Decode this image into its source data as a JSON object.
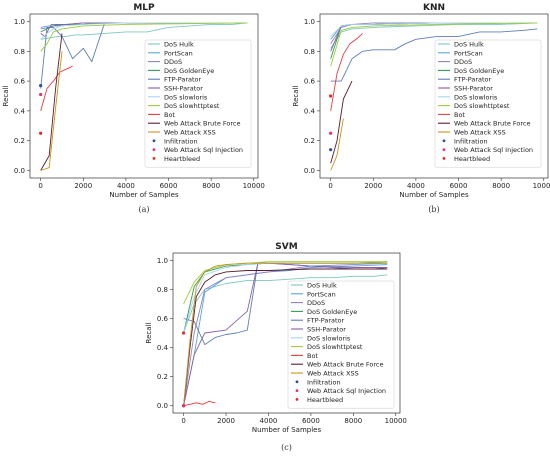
{
  "legend_entries": [
    {
      "name": "DoS Hulk",
      "color": "#7fc8c0",
      "kind": "line"
    },
    {
      "name": "PortScan",
      "color": "#5aa6d6",
      "kind": "line"
    },
    {
      "name": "DDoS",
      "color": "#8b86c4",
      "kind": "line"
    },
    {
      "name": "DoS GoldenEye",
      "color": "#2e9e56",
      "kind": "line"
    },
    {
      "name": "FTP-Parator",
      "color": "#5e7fb8",
      "kind": "line"
    },
    {
      "name": "SSH-Parator",
      "color": "#8a5ea8",
      "kind": "line"
    },
    {
      "name": "DoS slowloris",
      "color": "#a8d6f0",
      "kind": "line"
    },
    {
      "name": "DoS slowhttptest",
      "color": "#9ccc3a",
      "kind": "line"
    },
    {
      "name": "Bot",
      "color": "#e83c3c",
      "kind": "line"
    },
    {
      "name": "Web Attack Brute Force",
      "color": "#5c1a2e",
      "kind": "line"
    },
    {
      "name": "Web Attack XSS",
      "color": "#c89418",
      "kind": "line"
    },
    {
      "name": "Infiltration",
      "color": "#2a4fa8",
      "kind": "point"
    },
    {
      "name": "Web Attack Sql Injection",
      "color": "#e8306a",
      "kind": "point"
    },
    {
      "name": "Heartbleed",
      "color": "#e82828",
      "kind": "point"
    }
  ],
  "chart_data": [
    {
      "type": "line",
      "title": "MLP",
      "caption": "(a)",
      "xlabel": "Number of Samples",
      "ylabel": "Recall",
      "xlim": [
        -500,
        10200
      ],
      "ylim": [
        -0.05,
        1.05
      ],
      "xticks": [
        0,
        2000,
        4000,
        6000,
        8000,
        10000
      ],
      "yticks": [
        0.0,
        0.2,
        0.4,
        0.6,
        0.8,
        1.0
      ],
      "legend_position": "right",
      "series": [
        {
          "name": "DoS Hulk",
          "x": [
            0,
            400,
            800,
            1200,
            1600,
            2000,
            3000,
            4000,
            5000,
            6000,
            7000,
            8000,
            9000,
            9700
          ],
          "y": [
            0.88,
            0.89,
            0.9,
            0.9,
            0.91,
            0.91,
            0.92,
            0.93,
            0.93,
            0.96,
            0.97,
            0.98,
            0.98,
            0.99
          ]
        },
        {
          "name": "PortScan",
          "x": [
            0,
            400,
            800,
            1200,
            1600,
            2000,
            3000,
            4000,
            6000,
            8000,
            9700
          ],
          "y": [
            0.96,
            0.97,
            0.97,
            0.98,
            0.98,
            0.98,
            0.99,
            0.99,
            0.99,
            0.99,
            0.99
          ]
        },
        {
          "name": "DDoS",
          "x": [
            0,
            400,
            800,
            1200,
            2000,
            3000,
            5000,
            7000,
            9700
          ],
          "y": [
            0.95,
            0.96,
            0.98,
            0.98,
            0.99,
            0.99,
            0.99,
            0.99,
            0.99
          ]
        },
        {
          "name": "DoS GoldenEye",
          "x": [
            0,
            300,
            600,
            1000,
            2000,
            3000,
            5000,
            7000,
            9700
          ],
          "y": [
            0.93,
            0.95,
            0.97,
            0.98,
            0.98,
            0.99,
            0.99,
            0.99,
            0.99
          ]
        },
        {
          "name": "FTP-Parator",
          "x": [
            0,
            300,
            600,
            1000,
            1500,
            2000,
            2400,
            3000,
            4000,
            6000,
            9700
          ],
          "y": [
            0.55,
            0.96,
            0.96,
            0.9,
            0.75,
            0.82,
            0.73,
            0.99,
            0.99,
            0.99,
            0.99
          ]
        },
        {
          "name": "SSH-Parator",
          "x": [
            0,
            200,
            500,
            800,
            1200,
            2000,
            4000,
            9700
          ],
          "y": [
            0.92,
            0.9,
            0.98,
            0.98,
            0.98,
            0.99,
            0.99,
            0.99
          ]
        },
        {
          "name": "DoS slowloris",
          "x": [
            0,
            300,
            600,
            1000,
            2000,
            4000,
            9700
          ],
          "y": [
            0.88,
            0.92,
            0.95,
            0.97,
            0.98,
            0.99,
            0.99
          ]
        },
        {
          "name": "DoS slowhttptest",
          "x": [
            0,
            300,
            600,
            1000,
            2000,
            4000,
            9700
          ],
          "y": [
            0.8,
            0.85,
            0.93,
            0.95,
            0.97,
            0.98,
            0.99
          ]
        },
        {
          "name": "Bot",
          "x": [
            0,
            300,
            600,
            900,
            1200,
            1500
          ],
          "y": [
            0.4,
            0.55,
            0.6,
            0.66,
            0.68,
            0.7
          ]
        },
        {
          "name": "Web Attack Brute Force",
          "x": [
            0,
            400,
            700,
            1000
          ],
          "y": [
            0.0,
            0.1,
            0.55,
            0.92
          ]
        },
        {
          "name": "Web Attack XSS",
          "x": [
            0,
            400,
            700,
            1000
          ],
          "y": [
            0.0,
            0.02,
            0.42,
            0.8
          ]
        },
        {
          "name": "Infiltration",
          "x": [
            0
          ],
          "y": [
            0.57
          ]
        },
        {
          "name": "Web Attack Sql Injection",
          "x": [
            0
          ],
          "y": [
            0.51
          ]
        },
        {
          "name": "Heartbleed",
          "x": [
            0
          ],
          "y": [
            0.25
          ]
        }
      ]
    },
    {
      "type": "line",
      "title": "KNN",
      "caption": "(b)",
      "xlabel": "Number of Samples",
      "ylabel": "Recall",
      "xlim": [
        -500,
        10200
      ],
      "ylim": [
        -0.05,
        1.05
      ],
      "xticks": [
        0,
        2000,
        4000,
        6000,
        8000,
        10000
      ],
      "yticks": [
        0.0,
        0.2,
        0.4,
        0.6,
        0.8,
        1.0
      ],
      "legend_position": "right",
      "series": [
        {
          "name": "DoS Hulk",
          "x": [
            0,
            500,
            1000,
            2000,
            4000,
            6000,
            8000,
            9700
          ],
          "y": [
            0.82,
            0.93,
            0.95,
            0.96,
            0.97,
            0.98,
            0.98,
            0.99
          ]
        },
        {
          "name": "PortScan",
          "x": [
            0,
            500,
            1000,
            2000,
            4000,
            6000,
            8000,
            9700
          ],
          "y": [
            0.88,
            0.97,
            0.98,
            0.98,
            0.99,
            0.99,
            0.99,
            0.99
          ]
        },
        {
          "name": "DDoS",
          "x": [
            0,
            500,
            1000,
            2000,
            5000,
            9700
          ],
          "y": [
            0.85,
            0.96,
            0.98,
            0.99,
            0.99,
            0.99
          ]
        },
        {
          "name": "DoS GoldenEye",
          "x": [
            0,
            500,
            1000,
            2000,
            5000,
            9700
          ],
          "y": [
            0.75,
            0.97,
            0.98,
            0.98,
            0.99,
            0.99
          ]
        },
        {
          "name": "FTP-Parator",
          "x": [
            0,
            500,
            1000,
            1500,
            2000,
            3000,
            3500,
            4000,
            5000,
            6000,
            7000,
            8000,
            9000,
            9700
          ],
          "y": [
            0.6,
            0.6,
            0.75,
            0.8,
            0.81,
            0.81,
            0.85,
            0.88,
            0.9,
            0.9,
            0.93,
            0.93,
            0.94,
            0.95
          ]
        },
        {
          "name": "SSH-Parator",
          "x": [
            0,
            500,
            1000,
            2000,
            5000,
            9700
          ],
          "y": [
            0.8,
            0.97,
            0.98,
            0.98,
            0.99,
            0.99
          ]
        },
        {
          "name": "DoS slowloris",
          "x": [
            0,
            500,
            1000,
            2000,
            5000,
            9700
          ],
          "y": [
            0.9,
            0.97,
            0.98,
            0.98,
            0.99,
            0.99
          ]
        },
        {
          "name": "DoS slowhttptest",
          "x": [
            0,
            500,
            1000,
            2000,
            5000,
            9700
          ],
          "y": [
            0.7,
            0.94,
            0.96,
            0.97,
            0.98,
            0.99
          ]
        },
        {
          "name": "Bot",
          "x": [
            0,
            300,
            600,
            900,
            1200,
            1500
          ],
          "y": [
            0.4,
            0.65,
            0.78,
            0.85,
            0.88,
            0.92
          ]
        },
        {
          "name": "Web Attack Brute Force",
          "x": [
            0,
            300,
            600,
            1000
          ],
          "y": [
            0.05,
            0.2,
            0.48,
            0.6
          ]
        },
        {
          "name": "Web Attack XSS",
          "x": [
            0,
            300,
            600
          ],
          "y": [
            0.0,
            0.1,
            0.35
          ]
        },
        {
          "name": "Infiltration",
          "x": [
            0
          ],
          "y": [
            0.14
          ]
        },
        {
          "name": "Web Attack Sql Injection",
          "x": [
            0
          ],
          "y": [
            0.25
          ]
        },
        {
          "name": "Heartbleed",
          "x": [
            0
          ],
          "y": [
            0.5
          ]
        }
      ]
    },
    {
      "type": "line",
      "title": "SVM",
      "caption": "(c)",
      "xlabel": "Number of Samples",
      "ylabel": "Recall",
      "xlim": [
        -500,
        10200
      ],
      "ylim": [
        -0.05,
        1.05
      ],
      "xticks": [
        0,
        2000,
        4000,
        6000,
        8000,
        10000
      ],
      "yticks": [
        0.0,
        0.2,
        0.4,
        0.6,
        0.8,
        1.0
      ],
      "legend_position": "right",
      "series": [
        {
          "name": "DoS Hulk",
          "x": [
            0,
            500,
            1000,
            2000,
            3000,
            4000,
            5000,
            6000,
            7000,
            8000,
            9000,
            9600
          ],
          "y": [
            0.5,
            0.7,
            0.8,
            0.84,
            0.86,
            0.86,
            0.87,
            0.88,
            0.88,
            0.89,
            0.89,
            0.9
          ]
        },
        {
          "name": "PortScan",
          "x": [
            0,
            500,
            1000,
            2000,
            3000,
            4000,
            5000,
            6000,
            8000,
            9600
          ],
          "y": [
            0.0,
            0.35,
            0.78,
            0.88,
            0.9,
            0.92,
            0.93,
            0.95,
            0.96,
            0.97
          ]
        },
        {
          "name": "DDoS",
          "x": [
            0,
            500,
            1000,
            2000,
            3000,
            4000,
            5000,
            6000,
            8000,
            9600
          ],
          "y": [
            0.0,
            0.5,
            0.8,
            0.88,
            0.9,
            0.92,
            0.94,
            0.96,
            0.97,
            0.98
          ]
        },
        {
          "name": "DoS GoldenEye",
          "x": [
            0,
            500,
            1000,
            2000,
            3000,
            4000,
            6000,
            8000,
            9600
          ],
          "y": [
            0.5,
            0.82,
            0.92,
            0.96,
            0.97,
            0.98,
            0.98,
            0.98,
            0.99
          ]
        },
        {
          "name": "FTP-Parator",
          "x": [
            0,
            500,
            1000,
            1500,
            2000,
            2500,
            3000,
            3500,
            4000,
            5000,
            6000,
            7000,
            8000,
            9000,
            9600
          ],
          "y": [
            0.6,
            0.58,
            0.42,
            0.47,
            0.49,
            0.5,
            0.52,
            0.98,
            0.98,
            0.97,
            0.96,
            0.95,
            0.94,
            0.94,
            0.95
          ]
        },
        {
          "name": "SSH-Parator",
          "x": [
            0,
            500,
            1000,
            2000,
            3000,
            3500,
            4000,
            5000,
            6000,
            8000,
            9600
          ],
          "y": [
            0.0,
            0.35,
            0.5,
            0.52,
            0.65,
            0.98,
            0.98,
            0.97,
            0.96,
            0.95,
            0.95
          ]
        },
        {
          "name": "DoS slowloris",
          "x": [
            0,
            500,
            1000,
            2000,
            3000,
            4000,
            6000,
            8000,
            9600
          ],
          "y": [
            0.5,
            0.75,
            0.9,
            0.95,
            0.97,
            0.98,
            0.98,
            0.98,
            0.98
          ]
        },
        {
          "name": "DoS slowhttptest",
          "x": [
            0,
            500,
            1000,
            2000,
            3000,
            4000,
            6000,
            8000,
            9600
          ],
          "y": [
            0.7,
            0.85,
            0.93,
            0.97,
            0.98,
            0.99,
            0.99,
            0.99,
            0.99
          ]
        },
        {
          "name": "Bot",
          "x": [
            0,
            300,
            600,
            900,
            1200,
            1500
          ],
          "y": [
            0.0,
            0.01,
            0.02,
            0.01,
            0.03,
            0.02
          ]
        },
        {
          "name": "Web Attack Brute Force",
          "x": [
            0,
            300,
            600,
            1000,
            1500,
            2000,
            3000,
            4000,
            6000,
            8000,
            9600
          ],
          "y": [
            0.0,
            0.4,
            0.75,
            0.85,
            0.9,
            0.92,
            0.93,
            0.93,
            0.94,
            0.94,
            0.94
          ]
        },
        {
          "name": "Web Attack XSS",
          "x": [
            0,
            300,
            600,
            1000,
            1500,
            2000,
            3000,
            4000,
            6000,
            8000,
            9600
          ],
          "y": [
            0.0,
            0.45,
            0.82,
            0.92,
            0.96,
            0.97,
            0.98,
            0.98,
            0.98,
            0.98,
            0.98
          ]
        },
        {
          "name": "Infiltration",
          "x": [
            0
          ],
          "y": [
            0.0
          ]
        },
        {
          "name": "Web Attack Sql Injection",
          "x": [
            0
          ],
          "y": [
            0.0
          ]
        },
        {
          "name": "Heartbleed",
          "x": [
            0
          ],
          "y": [
            0.5
          ]
        }
      ]
    }
  ]
}
